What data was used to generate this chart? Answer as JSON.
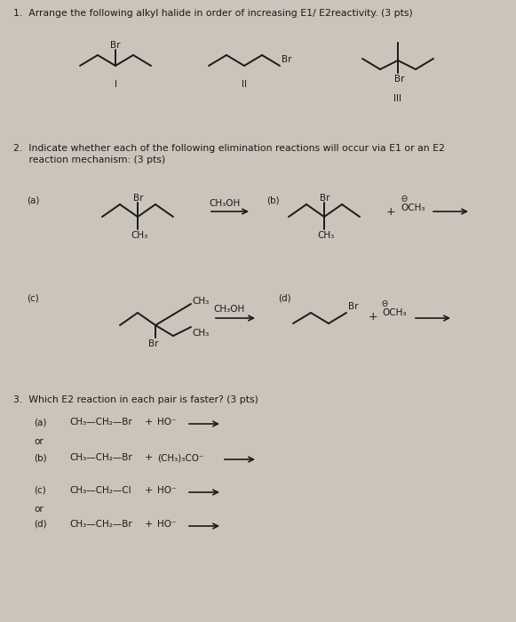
{
  "bg_color": "#cbc4ba",
  "text_color": "#1a1a1a",
  "line_color": "#1a1a1a",
  "title1": "1.  Arrange the following alkyl halide in order of increasing E1/ E2reactivity. (3 pts)",
  "title2_line1": "2.  Indicate whether each of the following elimination reactions will occur via E1 or an E2",
  "title2_line2": "     reaction mechanism: (3 pts)",
  "title3": "3.  Which E2 reaction in each pair is faster? (3 pts)"
}
